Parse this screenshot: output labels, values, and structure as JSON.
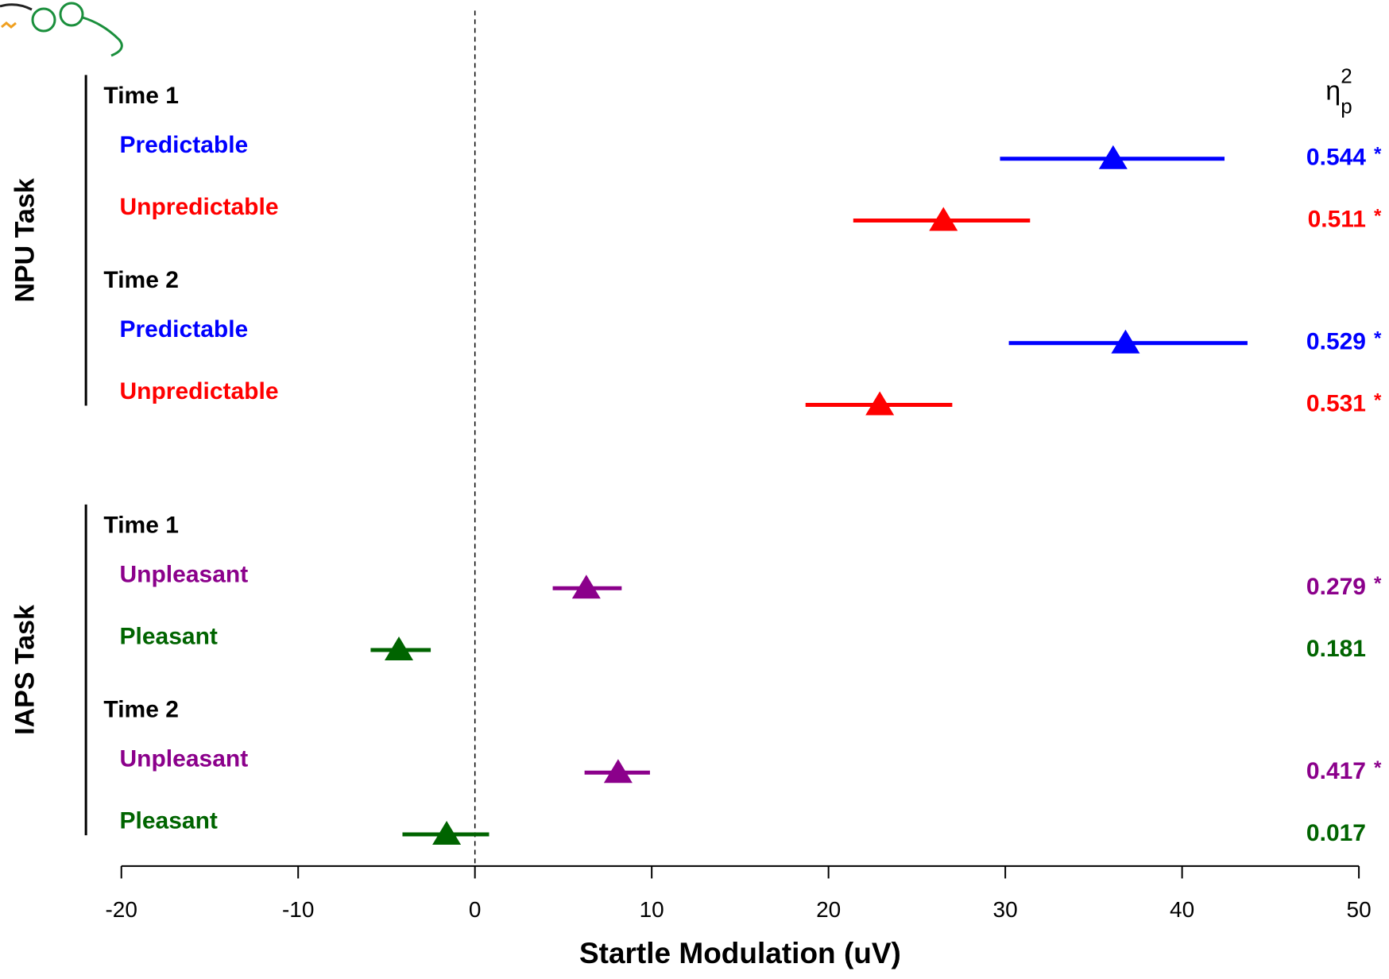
{
  "chart_data": {
    "type": "forest",
    "xlabel": "Startle Modulation (uV)",
    "xlim": [
      -20,
      50
    ],
    "xticks": [
      -20,
      -10,
      0,
      10,
      20,
      30,
      40,
      50
    ],
    "ref_line": 0,
    "eta_header": {
      "symbol": "η",
      "sup": "2",
      "sub": "p"
    },
    "groups": [
      {
        "name": "NPU Task",
        "subgroups": [
          {
            "name": "Time 1",
            "rows": [
              {
                "label": "Predictable",
                "color": "#0000ff",
                "value": 36.1,
                "lower": 29.7,
                "upper": 42.4,
                "eta": 0.544,
                "sig": "*"
              },
              {
                "label": "Unpredictable",
                "color": "#ff0000",
                "value": 26.5,
                "lower": 21.4,
                "upper": 31.4,
                "eta": 0.511,
                "sig": "*"
              }
            ]
          },
          {
            "name": "Time 2",
            "rows": [
              {
                "label": "Predictable",
                "color": "#0000ff",
                "value": 36.8,
                "lower": 30.2,
                "upper": 43.7,
                "eta": 0.529,
                "sig": "*"
              },
              {
                "label": "Unpredictable",
                "color": "#ff0000",
                "value": 22.9,
                "lower": 18.7,
                "upper": 27.0,
                "eta": 0.531,
                "sig": "*"
              }
            ]
          }
        ]
      },
      {
        "name": "IAPS Task",
        "subgroups": [
          {
            "name": "Time 1",
            "rows": [
              {
                "label": "Unpleasant",
                "color": "#8b008b",
                "value": 6.3,
                "lower": 4.4,
                "upper": 8.3,
                "eta": 0.279,
                "sig": "*"
              },
              {
                "label": "Pleasant",
                "color": "#006400",
                "value": -4.3,
                "lower": -5.9,
                "upper": -2.5,
                "eta": 0.181
              }
            ]
          },
          {
            "name": "Time 2",
            "rows": [
              {
                "label": "Unpleasant",
                "color": "#8b008b",
                "value": 8.1,
                "lower": 6.2,
                "upper": 9.9,
                "eta": 0.417,
                "sig": "*"
              },
              {
                "label": "Pleasant",
                "color": "#006400",
                "value": -1.6,
                "lower": -4.1,
                "upper": 0.8,
                "eta": 0.017
              }
            ]
          }
        ]
      }
    ]
  }
}
